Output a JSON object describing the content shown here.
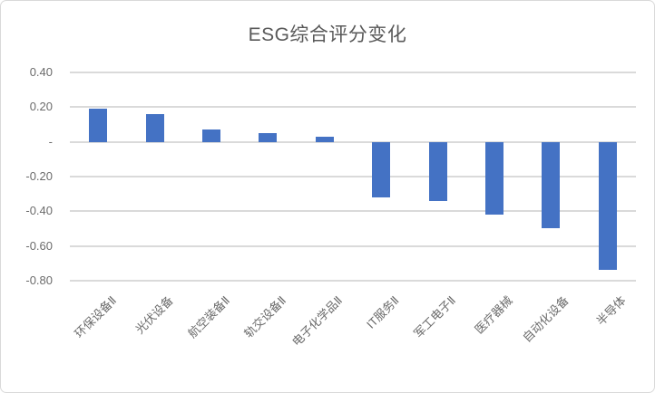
{
  "chart_data": {
    "type": "bar",
    "title": "ESG综合评分变化",
    "categories": [
      "环保设备Ⅱ",
      "光伏设备",
      "航空装备Ⅱ",
      "轨交设备Ⅱ",
      "电子化学品Ⅱ",
      "IT服务Ⅱ",
      "军工电子Ⅱ",
      "医疗器械",
      "自动化设备",
      "半导体"
    ],
    "values": [
      0.19,
      0.16,
      0.07,
      0.05,
      0.03,
      -0.32,
      -0.34,
      -0.42,
      -0.5,
      -0.74
    ],
    "xlabel": "",
    "ylabel": "",
    "ylim": [
      -0.8,
      0.4
    ],
    "y_ticks": [
      {
        "label": "0.40",
        "value": 0.4
      },
      {
        "label": "0.20",
        "value": 0.2
      },
      {
        "label": "-",
        "value": 0
      },
      {
        "label": "-0.20",
        "value": -0.2
      },
      {
        "label": "-0.40",
        "value": -0.4
      },
      {
        "label": "-0.60",
        "value": -0.6
      },
      {
        "label": "-0.80",
        "value": -0.8
      }
    ],
    "grid": true,
    "legend_position": "none",
    "colors": {
      "bar": "#4472C4",
      "gridline": "#DADADA",
      "title_text": "#595959",
      "axis_text": "#6B6B6B",
      "chart_border": "#D9D9D9",
      "background": "#FFFFFF"
    }
  }
}
